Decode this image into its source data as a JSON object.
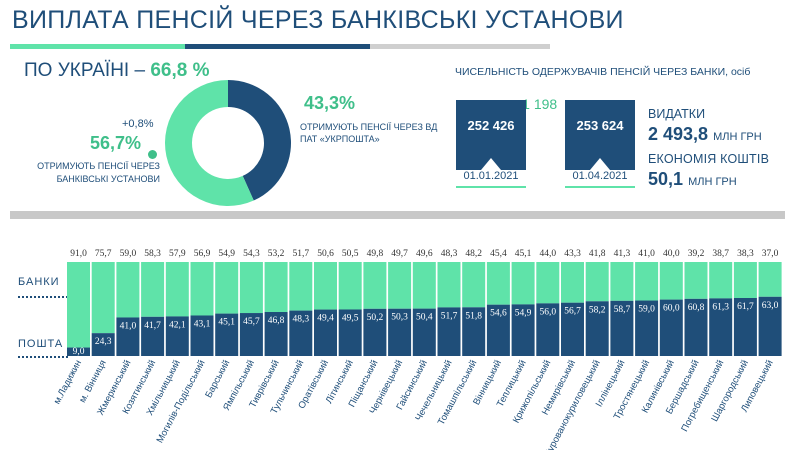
{
  "header": {
    "title": "ВИПЛАТА ПЕНСІЙ ЧЕРЕЗ БАНКІВСЬКІ УСТАНОВИ"
  },
  "summary": {
    "ukraine_label": "ПО УКРАЇНІ –",
    "ukraine_value": "66,8 %",
    "post_percent": "43,3%",
    "post_label": "ОТРИМУЮТЬ ПЕНСІЇ ЧЕРЕЗ ВД ПАТ «УКРПОШТА»",
    "bank_delta": "+0,8%",
    "bank_percent": "56,7%",
    "bank_label": "ОТРИМУЮТЬ ПЕНСІЇ ЧЕРЕЗ БАНКІВСЬКІ УСТАНОВИ",
    "donut_bank_share": 56.7,
    "donut_post_share": 43.3
  },
  "recipients": {
    "title": "ЧИСЕЛЬНІСТЬ ОДЕРЖУВАЧІВ ПЕНСІЙ ЧЕРЕЗ БАНКИ, осіб",
    "delta": "+1 198",
    "boxes": [
      {
        "value": "252 426",
        "date": "01.01.2021"
      },
      {
        "value": "253 624",
        "date": "01.04.2021"
      }
    ]
  },
  "expenses": {
    "label": "ВИДАТКИ",
    "value": "2 493,8",
    "unit": "МЛН ГРН",
    "savings_label": "ЕКОНОМІЯ КОШТІВ",
    "savings_value": "50,1",
    "savings_unit": "МЛН ГРН"
  },
  "axis": {
    "banks_label": "БАНКИ",
    "post_label": "ПОШТА"
  },
  "colors": {
    "banks": "#5fe3a9",
    "post": "#1f4e79",
    "accent_text": "#3fbf8a",
    "divider": "#c8c8c8"
  },
  "chart_data": {
    "type": "bar",
    "stacked": true,
    "categories": [
      "м.Ладижин",
      "м. Вінниця",
      "Жмеринський",
      "Козятинський",
      "Хмільницький",
      "Могилів-Подільський",
      "Барський",
      "Ямпільський",
      "Тиврівський",
      "Тульчинський",
      "Оратівський",
      "Літинський",
      "Піщанський",
      "Чернівецький",
      "Гайсинський",
      "Чечельницький",
      "Томашпільський",
      "Вінницький",
      "Теплицький",
      "Крижопільський",
      "Немирівський",
      "Мурованокуриловецький",
      "Іллінецький",
      "Тростянецький",
      "Калинівський",
      "Бершадський",
      "Погребищенський",
      "Шаргородський",
      "Липовецький"
    ],
    "series": [
      {
        "name": "БАНКИ",
        "values": [
          91.0,
          75.7,
          59.0,
          58.3,
          57.9,
          56.9,
          54.9,
          54.3,
          53.2,
          51.7,
          50.6,
          50.5,
          49.8,
          49.7,
          49.6,
          48.3,
          48.2,
          45.4,
          45.1,
          44.0,
          43.3,
          41.8,
          41.3,
          41.0,
          40.0,
          39.2,
          38.7,
          38.3,
          37.0
        ],
        "labels": [
          "91,0",
          "75,7",
          "59,0",
          "58,3",
          "57,9",
          "56,9",
          "54,9",
          "54,3",
          "53,2",
          "51,7",
          "50,6",
          "50,5",
          "49,8",
          "49,7",
          "49,6",
          "48,3",
          "48,2",
          "45,4",
          "45,1",
          "44,0",
          "43,3",
          "41,8",
          "41,3",
          "41,0",
          "40,0",
          "39,2",
          "38,7",
          "38,3",
          "37,0"
        ]
      },
      {
        "name": "ПОШТА",
        "values": [
          9.0,
          24.3,
          41.0,
          41.7,
          42.1,
          43.1,
          45.1,
          45.7,
          46.8,
          48.3,
          49.4,
          49.5,
          50.2,
          50.3,
          50.4,
          51.7,
          51.8,
          54.6,
          54.9,
          56.0,
          56.7,
          58.2,
          58.7,
          59.0,
          60.0,
          60.8,
          61.3,
          61.7,
          63.0
        ],
        "labels": [
          "9,0",
          "24,3",
          "41,0",
          "41,7",
          "42,1",
          "43,1",
          "45,1",
          "45,7",
          "46,8",
          "48,3",
          "49,4",
          "49,5",
          "50,2",
          "50,3",
          "50,4",
          "51,7",
          "51,8",
          "54,6",
          "54,9",
          "56,0",
          "56,7",
          "58,2",
          "58,7",
          "59,0",
          "60,0",
          "60,8",
          "61,3",
          "61,7",
          "63,0"
        ]
      }
    ],
    "ylim": [
      0,
      100
    ]
  }
}
